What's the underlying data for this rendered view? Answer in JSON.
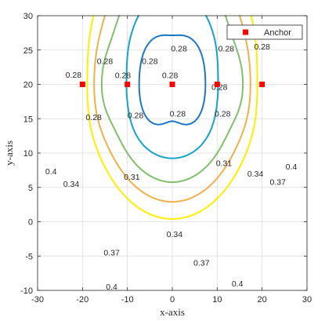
{
  "chart_data": {
    "type": "contour",
    "xlabel": "x-axis",
    "ylabel": "y-axis",
    "xlim": [
      -30,
      30
    ],
    "ylim": [
      -10,
      30
    ],
    "xticks": [
      -30,
      -20,
      -10,
      0,
      10,
      20,
      30
    ],
    "yticks": [
      -10,
      -5,
      0,
      5,
      10,
      15,
      20,
      25,
      30
    ],
    "grid": true,
    "legend": {
      "position": "top-right",
      "entries": [
        "Anchor"
      ]
    },
    "anchors": {
      "name": "Anchor",
      "color": "#ff0000",
      "x": [
        -20,
        -10,
        0,
        10,
        20
      ],
      "y": [
        20,
        20,
        20,
        20,
        20
      ]
    },
    "levels": [
      {
        "value": 0.28,
        "color": "#1f77c4"
      },
      {
        "value": 0.31,
        "color": "#17a2c8"
      },
      {
        "value": 0.34,
        "color": "#80bf6b"
      },
      {
        "value": 0.37,
        "color": "#f0b04a"
      },
      {
        "value": 0.4,
        "color": "#ffee00"
      }
    ],
    "contour_labels": [
      {
        "text": "0.28",
        "x": -15,
        "y": 23.4
      },
      {
        "text": "0.28",
        "x": -5,
        "y": 23.4
      },
      {
        "text": "0.28",
        "x": 1.5,
        "y": 25.2
      },
      {
        "text": "0.28",
        "x": 12,
        "y": 25.2
      },
      {
        "text": "0.28",
        "x": 20,
        "y": 25.5
      },
      {
        "text": "0.28",
        "x": -22,
        "y": 21.4
      },
      {
        "text": "0.28",
        "x": -17.5,
        "y": 15.2
      },
      {
        "text": "0.28",
        "x": -8.2,
        "y": 15.5
      },
      {
        "text": "0.28",
        "x": 1.2,
        "y": 15.7
      },
      {
        "text": "0.28",
        "x": 11.2,
        "y": 15.7
      },
      {
        "text": "0.28",
        "x": -11,
        "y": 21.3
      },
      {
        "text": "0.28",
        "x": -0.5,
        "y": 21.3
      },
      {
        "text": "0.28",
        "x": 10.5,
        "y": 19.6
      },
      {
        "text": "0.31",
        "x": -9,
        "y": 6.5
      },
      {
        "text": "0.31",
        "x": 11.5,
        "y": 8.5
      },
      {
        "text": "0.34",
        "x": -22.5,
        "y": 5.5
      },
      {
        "text": "0.34",
        "x": 0.5,
        "y": -1.8
      },
      {
        "text": "0.34",
        "x": 18.5,
        "y": 7.0
      },
      {
        "text": "0.37",
        "x": -13.5,
        "y": -4.5
      },
      {
        "text": "0.37",
        "x": 6.5,
        "y": -6.0
      },
      {
        "text": "0.37",
        "x": 23.5,
        "y": 5.8
      },
      {
        "text": "0.4",
        "x": -27,
        "y": 7.3
      },
      {
        "text": "0.4",
        "x": 26.5,
        "y": 8.0
      },
      {
        "text": "0.4",
        "x": -13.5,
        "y": -9.5
      },
      {
        "text": "0.4",
        "x": 14.5,
        "y": -9.0
      }
    ]
  }
}
